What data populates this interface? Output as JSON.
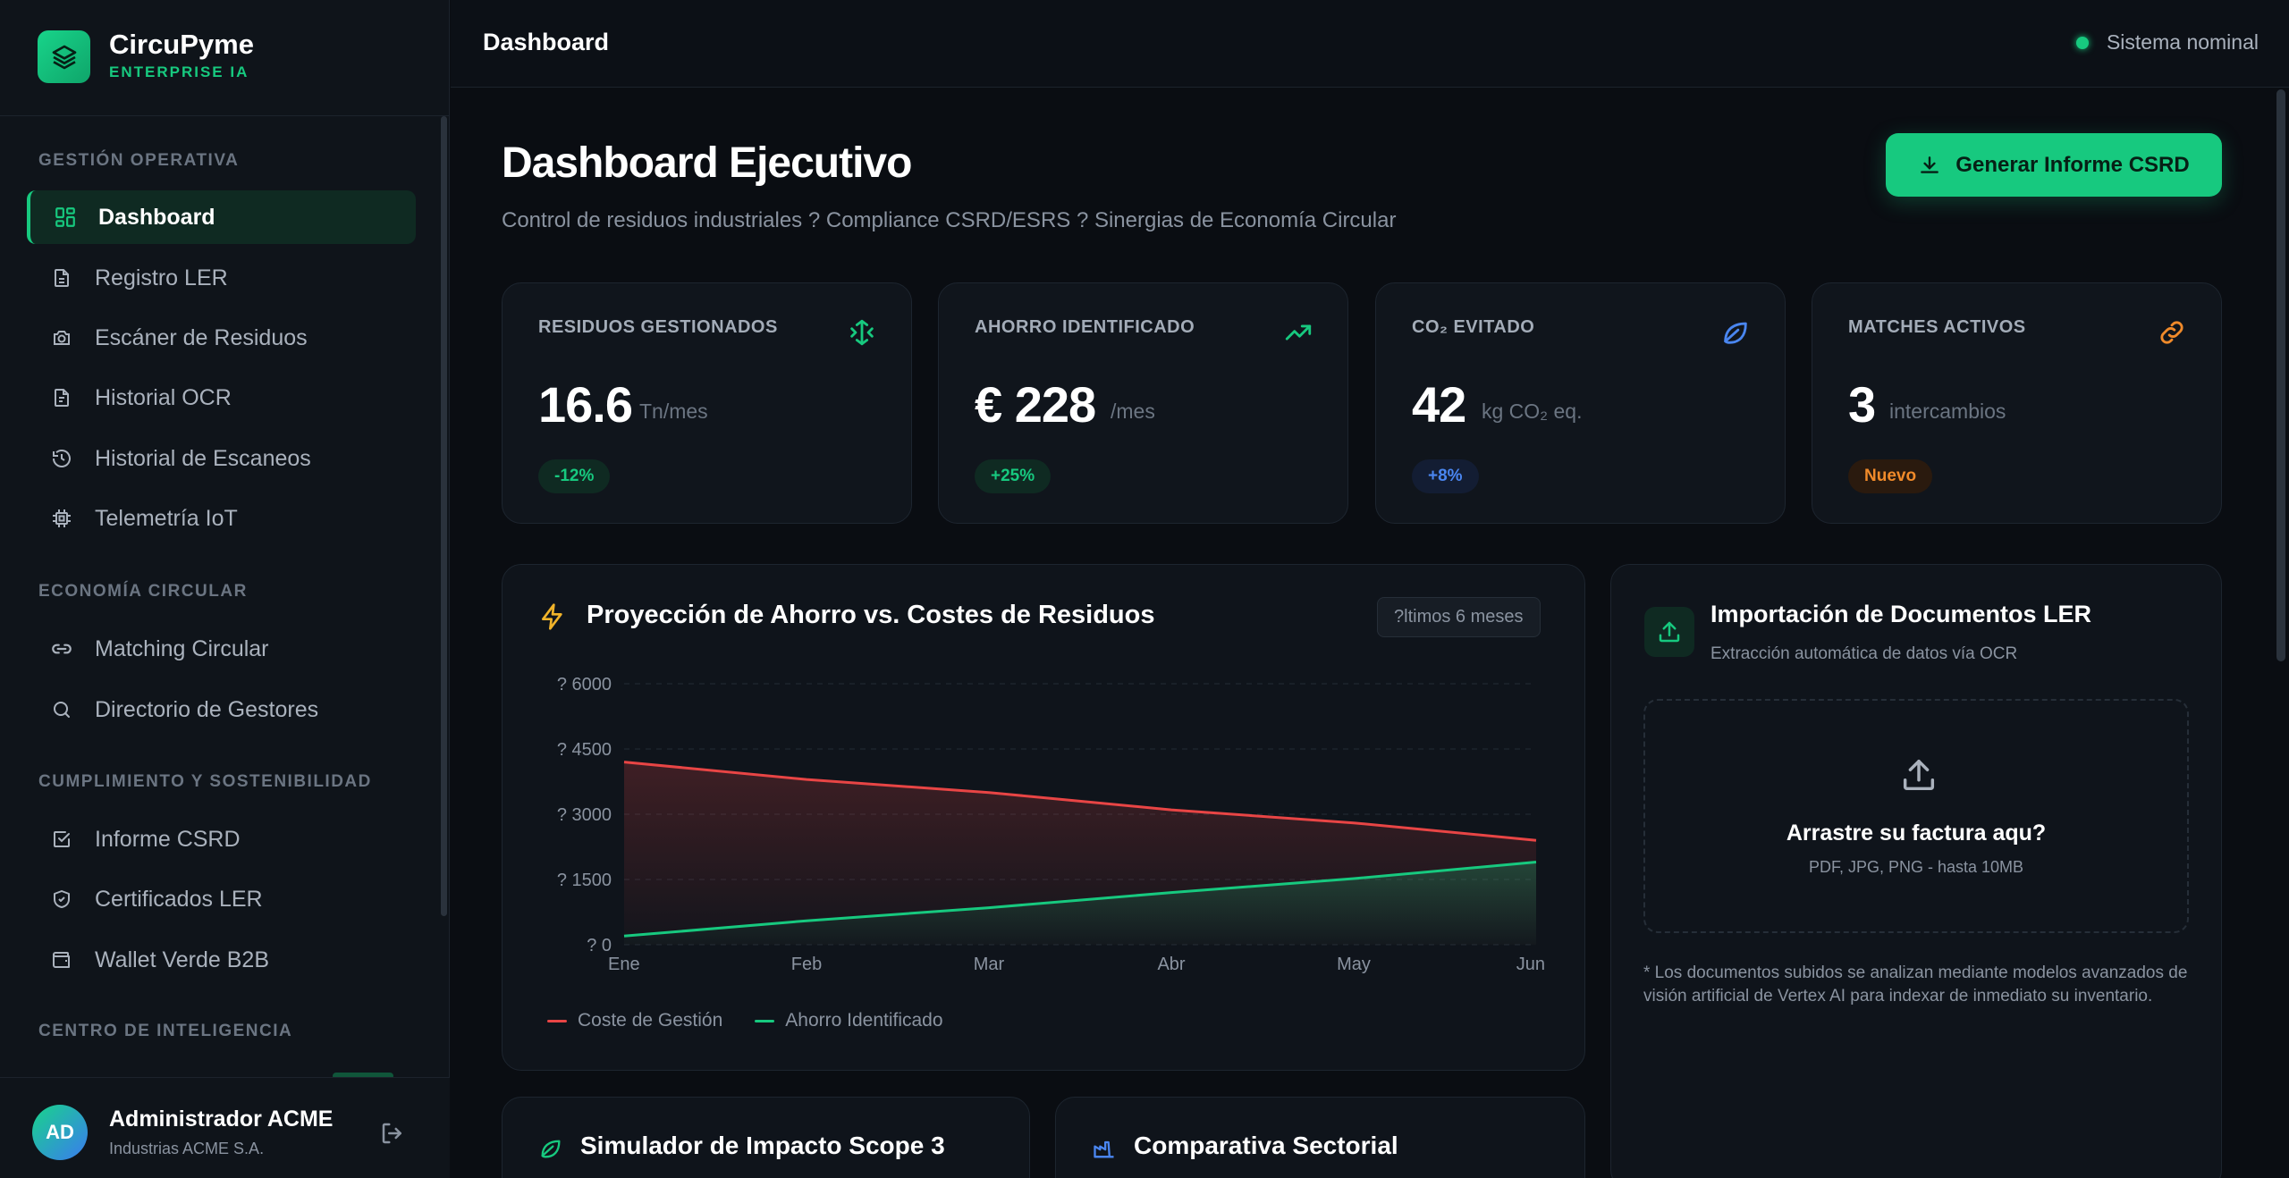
{
  "brand": {
    "name": "CircuPyme",
    "subtitle": "ENTERPRISE IA"
  },
  "sidebar": {
    "sections": [
      {
        "title": "GESTIÓN OPERATIVA"
      },
      {
        "title": "ECONOMÍA CIRCULAR"
      },
      {
        "title": "CUMPLIMIENTO Y SOSTENIBILIDAD"
      },
      {
        "title": "CENTRO DE INTELIGENCIA"
      }
    ],
    "items": [
      {
        "label": "Dashboard",
        "icon": "grid-icon",
        "active": true
      },
      {
        "label": "Registro LER",
        "icon": "document-icon"
      },
      {
        "label": "Escáner de Residuos",
        "icon": "camera-icon"
      },
      {
        "label": "Historial OCR",
        "icon": "document-text-icon"
      },
      {
        "label": "Historial de Escaneos",
        "icon": "history-icon"
      },
      {
        "label": "Telemetría IoT",
        "icon": "chip-icon"
      },
      {
        "label": "Matching Circular",
        "icon": "link-icon"
      },
      {
        "label": "Directorio de Gestores",
        "icon": "search-icon"
      },
      {
        "label": "Informe CSRD",
        "icon": "checkbox-icon"
      },
      {
        "label": "Certificados LER",
        "icon": "shield-check-icon"
      },
      {
        "label": "Wallet Verde B2B",
        "icon": "wallet-icon"
      }
    ]
  },
  "user": {
    "initials": "AD",
    "name": "Administrador ACME",
    "org": "Industrias ACME S.A."
  },
  "topbar": {
    "title": "Dashboard",
    "status": "Sistema nominal"
  },
  "header": {
    "title": "Dashboard Ejecutivo",
    "subtitle": "Control de residuos industriales ? Compliance CSRD/ESRS ? Sinergias de Economía Circular",
    "primary_button": "Generar Informe CSRD"
  },
  "kpis": [
    {
      "label": "RESIDUOS GESTIONADOS",
      "value": "16.6",
      "unit": "Tn/mes",
      "badge": "-12%",
      "icon": "recycle-icon",
      "accent": "#17c97f"
    },
    {
      "label": "AHORRO IDENTIFICADO",
      "value": "€ 228",
      "unit": "/mes",
      "badge": "+25%",
      "icon": "trending-up-icon",
      "accent": "#17c97f"
    },
    {
      "label": "CO₂ EVITADO",
      "value": "42",
      "unit": "kg CO₂ eq.",
      "badge": "+8%",
      "icon": "leaf-icon",
      "accent": "#4a86f0"
    },
    {
      "label": "MATCHES ACTIVOS",
      "value": "3",
      "unit": "intercambios",
      "badge": "Nuevo",
      "icon": "link-icon",
      "accent": "#f08a2a"
    }
  ],
  "chart_card": {
    "title": "Proyección de Ahorro vs. Costes de Residuos",
    "period": "?ltimos 6 meses"
  },
  "chart_data": {
    "type": "area",
    "categories": [
      "Ene",
      "Feb",
      "Mar",
      "Abr",
      "May",
      "Jun"
    ],
    "ytick_labels": [
      "? 0",
      "? 1500",
      "? 3000",
      "? 4500",
      "? 6000"
    ],
    "ylim": [
      0,
      6000
    ],
    "grid": true,
    "legend_position": "bottom-left",
    "series": [
      {
        "name": "Coste de Gestión",
        "color": "#e84545",
        "values": [
          4200,
          3800,
          3500,
          3100,
          2800,
          2400
        ]
      },
      {
        "name": "Ahorro Identificado",
        "color": "#17c97f",
        "values": [
          200,
          550,
          850,
          1200,
          1520,
          1900
        ]
      }
    ]
  },
  "import_card": {
    "title": "Importación de Documentos LER",
    "subtitle": "Extracción automática de datos vía OCR",
    "drop_title": "Arrastre su factura aqu?",
    "drop_sub": "PDF, JPG, PNG - hasta 10MB",
    "note": "* Los documentos subidos se analizan mediante modelos avanzados de visión artificial de Vertex AI para indexar de inmediato su inventario."
  },
  "bottom_cards": [
    {
      "title": "Simulador de Impacto Scope 3",
      "icon": "leaf-icon"
    },
    {
      "title": "Comparativa Sectorial",
      "icon": "factory-icon"
    }
  ]
}
